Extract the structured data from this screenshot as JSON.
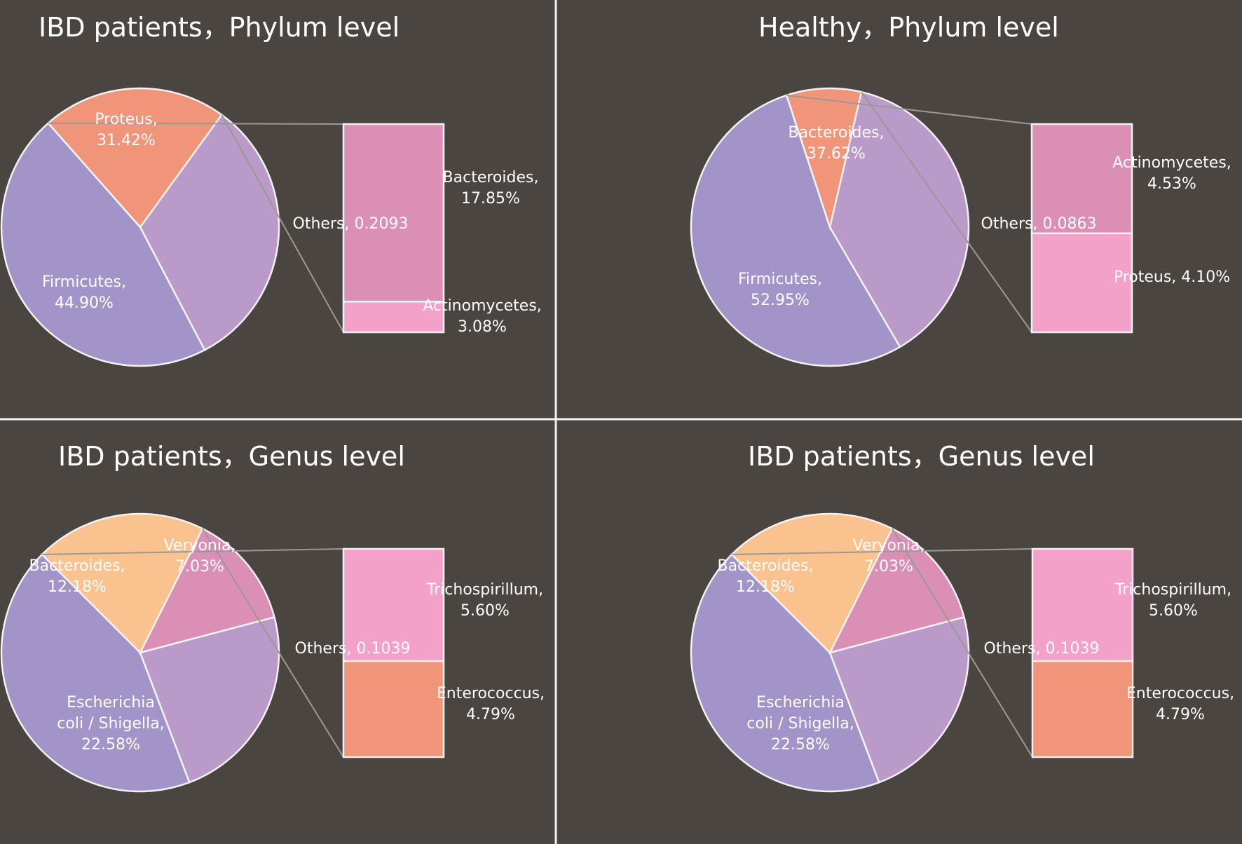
{
  "chart_data": [
    {
      "type": "pie",
      "title": "IBD patients，Phylum level",
      "slices": [
        {
          "label": "Proteus, 31.42%",
          "value": 31.42,
          "color": "#b99ac9"
        },
        {
          "label": "Firmicutes, 44.90%",
          "value": 44.9,
          "color": "#a294c8"
        },
        {
          "label": "Others, 0.2093",
          "value": 20.93,
          "color": "#f0947a"
        }
      ],
      "breakdown": [
        {
          "label": "Bacteroides, 17.85%",
          "value": 17.85,
          "color": "#dc8fb5"
        },
        {
          "label": "Actinomycetes, 3.08%",
          "value": 3.08,
          "color": "#f4a1c9"
        }
      ]
    },
    {
      "type": "pie",
      "title": "Healthy，Phylum level",
      "slices": [
        {
          "label": "Bacteroides, 37.62%",
          "value": 37.62,
          "color": "#b99ac9"
        },
        {
          "label": "Firmicutes, 52.95%",
          "value": 52.95,
          "color": "#a294c8"
        },
        {
          "label": "Others, 0.0863",
          "value": 8.63,
          "color": "#f0947a"
        }
      ],
      "breakdown": [
        {
          "label": "Actinomycetes, 4.53%",
          "value": 4.53,
          "color": "#dc8fb5"
        },
        {
          "label": "Proteus, 4.10%",
          "value": 4.1,
          "color": "#f4a1c9"
        }
      ]
    },
    {
      "type": "pie",
      "title": "IBD patients，Genus level",
      "slices": [
        {
          "label": "Bacteroides, 12.18%",
          "value": 12.18,
          "color": "#b99ac9"
        },
        {
          "label": "Veryonia, 7.03%",
          "value": 7.03,
          "color": "#dc8fb5"
        },
        {
          "label": "Escherichia coli / Shigella, 22.58%",
          "value": 22.58,
          "color": "#a294c8"
        },
        {
          "label": "Others, 0.1039",
          "value": 10.39,
          "color": "#f9c28e"
        }
      ],
      "breakdown": [
        {
          "label": "Trichospirillum, 5.60%",
          "value": 5.6,
          "color": "#f4a1c9"
        },
        {
          "label": "Enterococcus, 4.79%",
          "value": 4.79,
          "color": "#f0947a"
        }
      ]
    },
    {
      "type": "pie",
      "title": "IBD patients，Genus level",
      "slices": [
        {
          "label": "Bacteroides, 12.18%",
          "value": 12.18,
          "color": "#b99ac9"
        },
        {
          "label": "Veryonia, 7.03%",
          "value": 7.03,
          "color": "#dc8fb5"
        },
        {
          "label": "Escherichia coli / Shigella, 22.58%",
          "value": 22.58,
          "color": "#a294c8"
        },
        {
          "label": "Others, 0.1039",
          "value": 10.39,
          "color": "#f9c28e"
        }
      ],
      "breakdown": [
        {
          "label": "Trichospirillum, 5.60%",
          "value": 5.6,
          "color": "#f4a1c9"
        },
        {
          "label": "Enterococcus, 4.79%",
          "value": 4.79,
          "color": "#f0947a"
        }
      ]
    }
  ]
}
